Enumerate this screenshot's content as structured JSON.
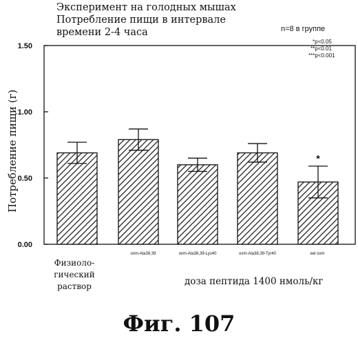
{
  "chart_data": {
    "type": "bar",
    "title_lines": [
      "Эксперимент на голодных мышах",
      "Потребление пищи в интервале",
      "времени 2-4 часа"
    ],
    "ylabel": "Потребление пищи (г)",
    "xlabel": "доза пептида 1400 нмоль/кг",
    "categories": [
      "Физиоло-гический раствор",
      "oxm-Ala38,39",
      "oxm-Ala38,39-Lys40",
      "oxm-Ala38,39-Tyr40",
      "eel oxm"
    ],
    "values": [
      0.69,
      0.79,
      0.6,
      0.69,
      0.47
    ],
    "errors": [
      0.08,
      0.08,
      0.05,
      0.07,
      0.12
    ],
    "significance": [
      "",
      "",
      "",
      "",
      "*"
    ],
    "ylim": [
      0,
      1.5
    ],
    "yticks": [
      "0.00",
      "0.50",
      "1.00",
      "1.50"
    ],
    "legend_notes": [
      "n=8 в группе",
      "*p<0.05",
      "**p<0.01",
      "***p<0.001"
    ],
    "bar_fill": "hatched",
    "bar_color": "#222222"
  },
  "control_label_lines": [
    "Физиоло-",
    "гический",
    "раствор"
  ],
  "figure_caption": "Фиг. 107"
}
